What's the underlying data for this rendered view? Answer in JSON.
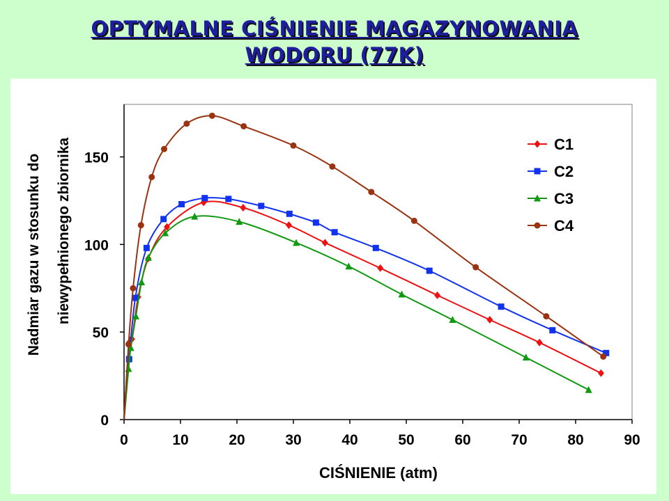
{
  "title": {
    "line1": "OPTYMALNE CIŚNIENIE MAGAZYNOWANIA",
    "line2": "WODORU (77K)"
  },
  "chart_data": {
    "type": "line",
    "xlabel": "CIŚNIENIE (atm)",
    "ylabel_line1": "Nadmiar gazu w stosunku do",
    "ylabel_line2": "niewypełnionego zbiornika",
    "xlim": [
      0,
      90
    ],
    "ylim": [
      0,
      180
    ],
    "xticks": [
      0,
      10,
      20,
      30,
      40,
      50,
      60,
      70,
      80,
      90
    ],
    "yticks": [
      0,
      50,
      100,
      150
    ],
    "grid": false,
    "legend_position": "top-right",
    "series": [
      {
        "name": "C1",
        "color": "#ee1111",
        "marker": "diamond",
        "points": [
          [
            0,
            0
          ],
          [
            0.9,
            44
          ],
          [
            1.4,
            46
          ],
          [
            2.5,
            70
          ],
          [
            4.3,
            92
          ],
          [
            7.6,
            110
          ],
          [
            14.1,
            124
          ],
          [
            21.1,
            121
          ],
          [
            29.2,
            111
          ],
          [
            35.6,
            101
          ],
          [
            45.4,
            86.5
          ],
          [
            55.5,
            71
          ],
          [
            64.8,
            57
          ],
          [
            73.6,
            44
          ],
          [
            84.5,
            26.5
          ]
        ]
      },
      {
        "name": "C2",
        "color": "#1133ee",
        "marker": "square",
        "points": [
          [
            0,
            0
          ],
          [
            0.9,
            34.5
          ],
          [
            2,
            69.5
          ],
          [
            4,
            98
          ],
          [
            7,
            114.5
          ],
          [
            10.2,
            123
          ],
          [
            14.3,
            126.5
          ],
          [
            18.5,
            126
          ],
          [
            24.3,
            122
          ],
          [
            29.3,
            117.5
          ],
          [
            34,
            112.5
          ],
          [
            37.3,
            107
          ],
          [
            44.6,
            98
          ],
          [
            54.1,
            85
          ],
          [
            66.8,
            64.5
          ],
          [
            75.9,
            51
          ],
          [
            85.4,
            38
          ]
        ]
      },
      {
        "name": "C3",
        "color": "#119911",
        "marker": "triangle",
        "points": [
          [
            0,
            0
          ],
          [
            0.8,
            29
          ],
          [
            1.2,
            41
          ],
          [
            2.1,
            59
          ],
          [
            3.1,
            78.5
          ],
          [
            4.3,
            92.5
          ],
          [
            7.3,
            106.5
          ],
          [
            12.5,
            116
          ],
          [
            20.4,
            113
          ],
          [
            30.5,
            101
          ],
          [
            39.8,
            87.5
          ],
          [
            49.2,
            71.5
          ],
          [
            58.2,
            57
          ],
          [
            71.2,
            35.5
          ],
          [
            82.3,
            17
          ]
        ]
      },
      {
        "name": "C4",
        "color": "#993311",
        "marker": "circle",
        "points": [
          [
            0,
            0
          ],
          [
            0.8,
            43
          ],
          [
            1.6,
            75
          ],
          [
            3,
            111
          ],
          [
            4.9,
            138.5
          ],
          [
            7.1,
            154.5
          ],
          [
            11.1,
            169
          ],
          [
            15.6,
            173.5
          ],
          [
            21.2,
            167.5
          ],
          [
            30,
            156.5
          ],
          [
            36.9,
            144.5
          ],
          [
            43.8,
            130
          ],
          [
            51.4,
            113.5
          ],
          [
            62.3,
            87
          ],
          [
            74.8,
            59
          ],
          [
            84.9,
            36
          ]
        ]
      }
    ]
  }
}
